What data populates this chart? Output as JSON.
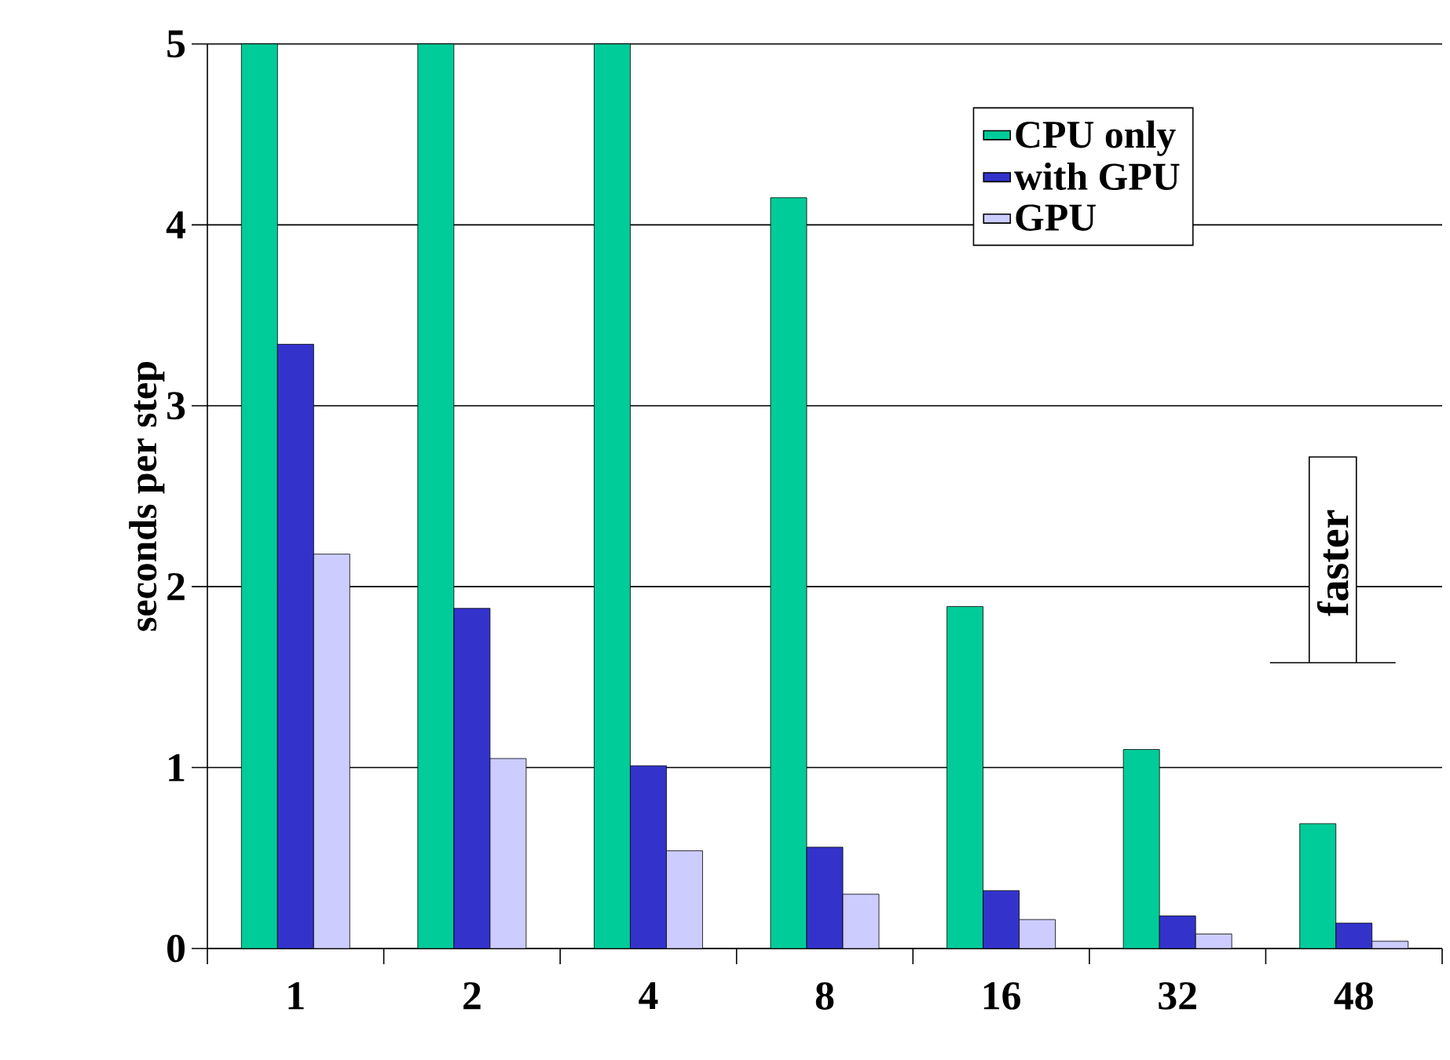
{
  "chart_data": {
    "type": "bar",
    "ylabel": "seconds per step",
    "categories": [
      "1",
      "2",
      "4",
      "8",
      "16",
      "32",
      "48"
    ],
    "series": [
      {
        "name": "CPU only",
        "color": "#00cc99",
        "values": [
          5,
          5,
          5,
          4.15,
          1.89,
          1.1,
          0.69
        ]
      },
      {
        "name": "with GPU",
        "color": "#3333cc",
        "values": [
          3.34,
          1.88,
          1.01,
          0.56,
          0.32,
          0.18,
          0.14
        ]
      },
      {
        "name": "GPU",
        "color": "#ccccff",
        "values": [
          2.18,
          1.05,
          0.54,
          0.3,
          0.16,
          0.08,
          0.04
        ]
      }
    ],
    "ylim": [
      0,
      5
    ],
    "yticks": [
      0,
      1,
      2,
      3,
      4,
      5
    ],
    "grid": "y",
    "legend": "top right",
    "annotations": [
      "faster"
    ]
  }
}
